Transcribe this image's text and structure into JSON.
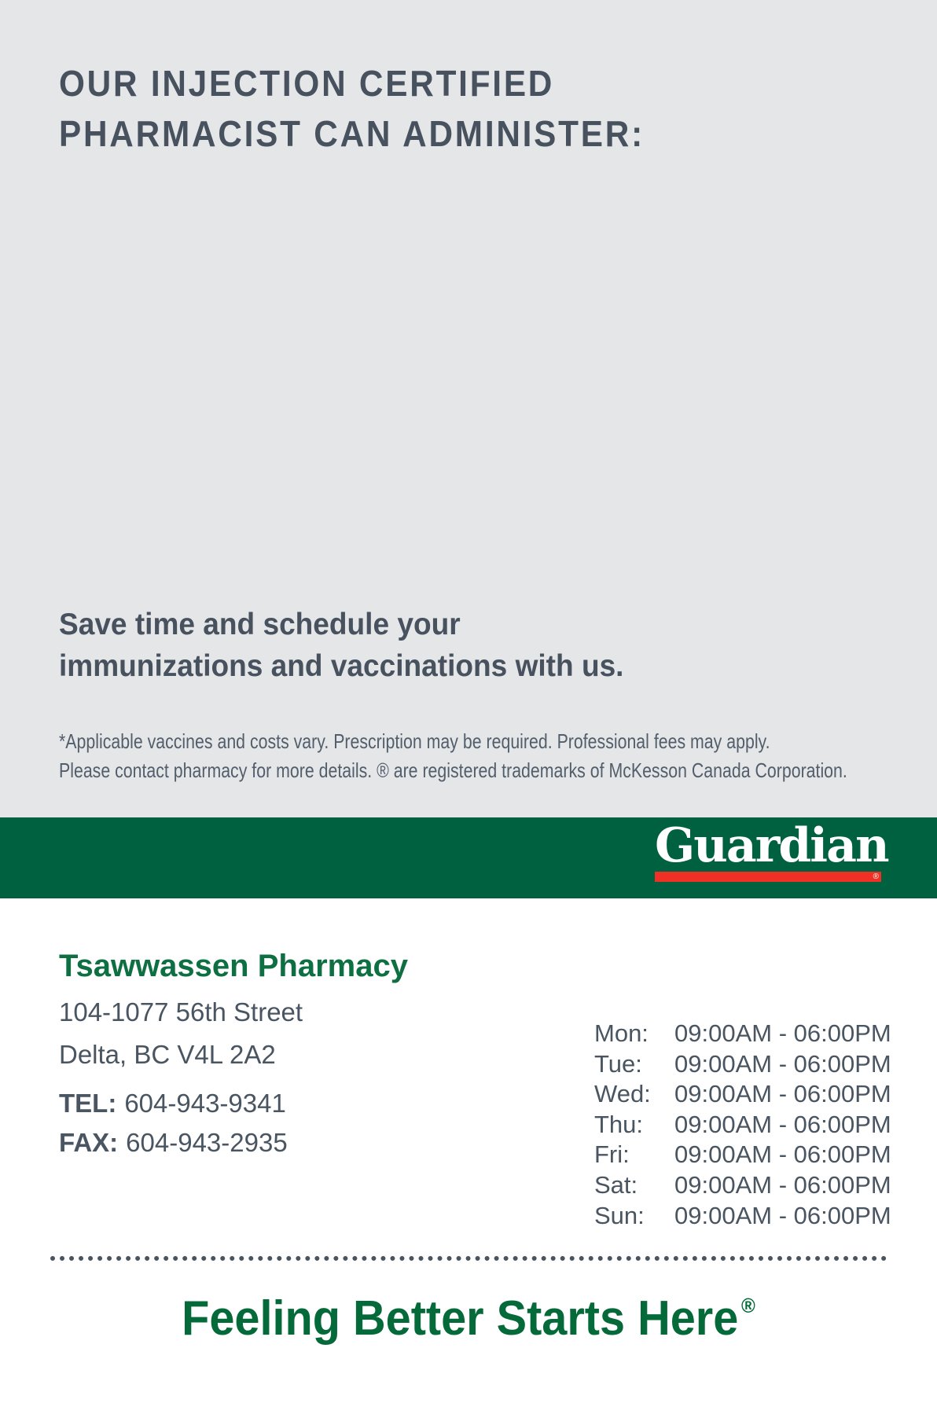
{
  "colors": {
    "hero_background": "#e5e6e8",
    "heading_text": "#48525f",
    "body_text": "#4a5562",
    "brand_green": "#006140",
    "brand_red": "#ee3124",
    "store_name_green": "#0e6f42",
    "tagline_green": "#056a39"
  },
  "hero": {
    "heading_line1": "OUR INJECTION CERTIFIED",
    "heading_line2": "PHARMACIST CAN ADMINISTER:",
    "subheading_line1": "Save time and schedule your",
    "subheading_line2": "immunizations and vaccinations with us.",
    "disclaimer_line1": "*Applicable vaccines and costs vary. Prescription may be required. Professional fees may apply.",
    "disclaimer_line2": "Please contact pharmacy for more details. ® are registered trademarks of McKesson Canada Corporation."
  },
  "brand_banner": {
    "logo_text": "Guardian",
    "registered_mark": "®"
  },
  "store": {
    "name": "Tsawwassen Pharmacy",
    "address_line1": "104-1077 56th Street",
    "address_line2": "Delta, BC V4L 2A2",
    "tel_label": "TEL:",
    "tel_number": "604-943-9341",
    "fax_label": "FAX:",
    "fax_number": "604-943-2935"
  },
  "hours": {
    "rows": [
      {
        "day": "Mon:",
        "time": "09:00AM - 06:00PM"
      },
      {
        "day": "Tue:",
        "time": "09:00AM - 06:00PM"
      },
      {
        "day": "Wed:",
        "time": "09:00AM - 06:00PM"
      },
      {
        "day": "Thu:",
        "time": "09:00AM - 06:00PM"
      },
      {
        "day": "Fri:",
        "time": "09:00AM - 06:00PM"
      },
      {
        "day": "Sat:",
        "time": "09:00AM - 06:00PM"
      },
      {
        "day": "Sun:",
        "time": "09:00AM - 06:00PM"
      }
    ]
  },
  "footer": {
    "tagline": "Feeling Better Starts Here",
    "registered_mark": "®"
  }
}
